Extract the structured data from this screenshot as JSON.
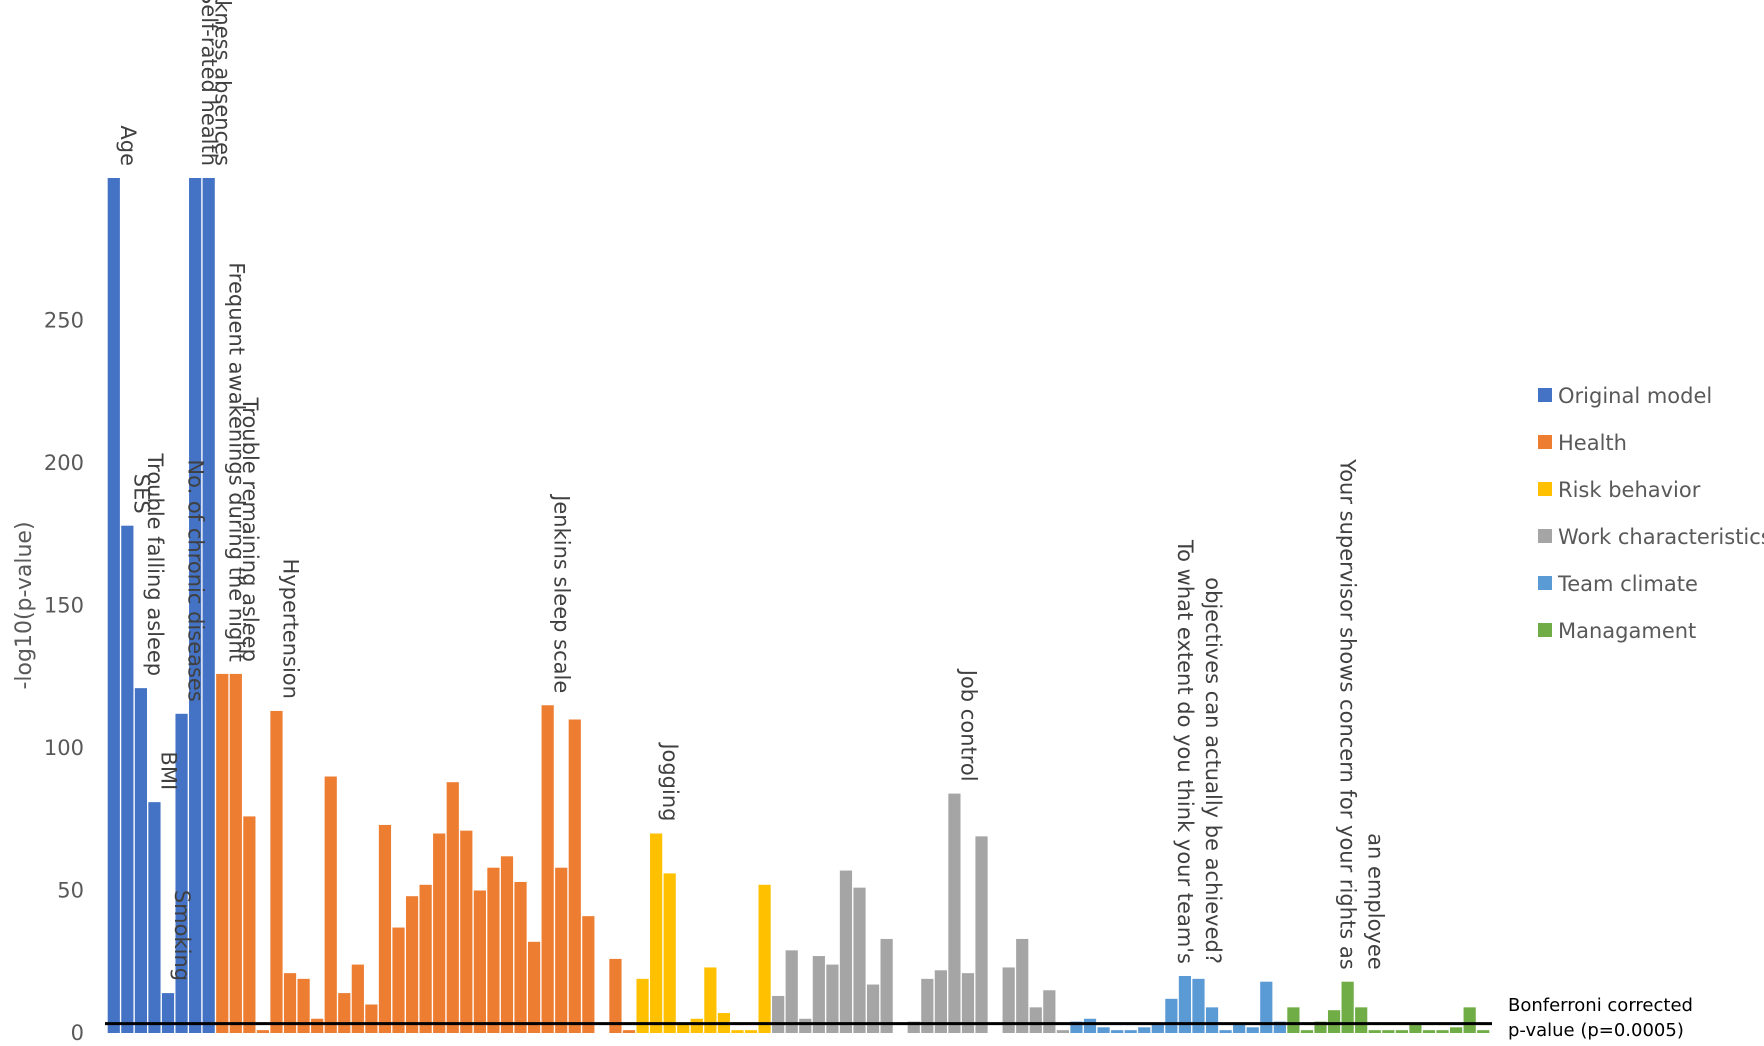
{
  "chart_data": {
    "type": "bar",
    "title": "",
    "xlabel": "",
    "ylabel": "-log10(p-value)",
    "ylim": [
      0,
      300
    ],
    "yticks": [
      0,
      50,
      100,
      150,
      200,
      250
    ],
    "grid": false,
    "legend_position": "right",
    "reference_line": {
      "value": 3.3,
      "label_lines": [
        "Bonferroni corrected",
        "p-value (p=0.0005)"
      ]
    },
    "series": [
      {
        "name": "Original model",
        "color": "#4472C4",
        "values": [
          300,
          178,
          121,
          81,
          14,
          112,
          300,
          300
        ]
      },
      {
        "name": "Health",
        "color": "#ED7D31",
        "values": [
          126,
          126,
          76,
          1,
          113,
          21,
          19,
          5,
          90,
          14,
          24,
          10,
          73,
          37,
          48,
          52,
          70,
          88,
          71,
          50,
          58,
          62,
          53,
          32,
          115,
          58,
          110,
          41,
          0,
          26,
          1
        ]
      },
      {
        "name": "Risk behavior",
        "color": "#FFC000",
        "values": [
          19,
          70,
          56,
          3,
          5,
          23,
          7,
          1,
          1,
          52
        ]
      },
      {
        "name": "Work characteristics",
        "color": "#A5A5A5",
        "values": [
          13,
          29,
          5,
          27,
          24,
          57,
          51,
          17,
          33,
          0,
          4,
          19,
          22,
          84,
          21,
          69,
          0,
          23,
          33,
          9,
          15,
          1
        ]
      },
      {
        "name": "Team climate",
        "color": "#5B9BD5",
        "values": [
          4,
          5,
          2,
          1,
          1,
          2,
          3,
          12,
          20,
          19,
          9,
          1,
          3,
          2,
          18,
          4
        ]
      },
      {
        "name": "Managament",
        "color": "#70AD47",
        "values": [
          9,
          1,
          4,
          8,
          18,
          9,
          1,
          1,
          1,
          3,
          1,
          1,
          2,
          9,
          1
        ]
      }
    ],
    "annotations": [
      {
        "series": 0,
        "index": 0,
        "lines": [
          "Age"
        ]
      },
      {
        "series": 0,
        "index": 1,
        "lines": [
          "SES"
        ]
      },
      {
        "series": 0,
        "index": 2,
        "lines": [
          "Trouble falling asleep"
        ]
      },
      {
        "series": 0,
        "index": 3,
        "lines": [
          "BMI"
        ]
      },
      {
        "series": 0,
        "index": 4,
        "lines": [
          "Smoking"
        ]
      },
      {
        "series": 0,
        "index": 5,
        "lines": [
          "No. of chronic diseases"
        ]
      },
      {
        "series": 0,
        "index": 6,
        "lines": [
          "Self-rated health"
        ]
      },
      {
        "series": 0,
        "index": 7,
        "lines": [
          "Previous sickness absences"
        ]
      },
      {
        "series": 1,
        "index": 0,
        "lines": [
          "Frequent awakenings during the night"
        ]
      },
      {
        "series": 1,
        "index": 1,
        "lines": [
          "Trouble remaining asleep"
        ]
      },
      {
        "series": 1,
        "index": 4,
        "lines": [
          "Hypertension"
        ]
      },
      {
        "series": 1,
        "index": 24,
        "lines": [
          "Jenkins sleep scale"
        ]
      },
      {
        "series": 2,
        "index": 1,
        "lines": [
          "Jogging"
        ]
      },
      {
        "series": 3,
        "index": 13,
        "lines": [
          "Job control"
        ]
      },
      {
        "series": 4,
        "index": 8,
        "lines": [
          "To what extent do you think your team's",
          "objectives can actually be achieved?"
        ]
      },
      {
        "series": 5,
        "index": 4,
        "lines": [
          "Your supervisor shows concern for your rights as",
          "an employee"
        ]
      }
    ]
  }
}
